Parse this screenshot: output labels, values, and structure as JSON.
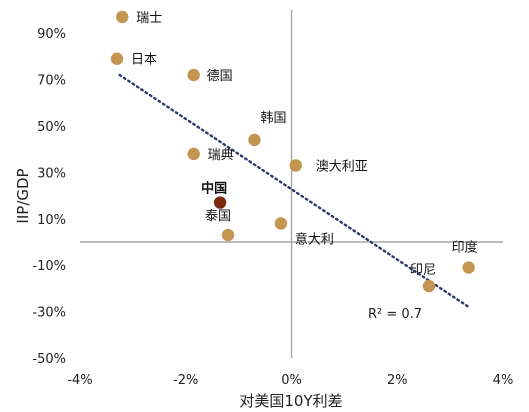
{
  "chart_data": {
    "type": "scatter",
    "xlabel": "对美国10Y利差",
    "ylabel": "IIP/GDP",
    "xlim": [
      -4,
      4
    ],
    "ylim": [
      -50,
      100
    ],
    "x_ticks": [
      -4,
      -2,
      0,
      2,
      4
    ],
    "x_tick_labels": [
      "-4%",
      "-2%",
      "0%",
      "2%",
      "4%"
    ],
    "y_ticks": [
      90,
      70,
      50,
      30,
      10,
      -10,
      -30,
      -50
    ],
    "y_tick_labels": [
      "90%",
      "70%",
      "50%",
      "30%",
      "10%",
      "-10%",
      "-30%",
      "-50%"
    ],
    "points": [
      {
        "label": "瑞士",
        "x": -3.2,
        "y": 97
      },
      {
        "label": "日本",
        "x": -3.3,
        "y": 79
      },
      {
        "label": "德国",
        "x": -1.85,
        "y": 72
      },
      {
        "label": "韩国",
        "x": -0.7,
        "y": 44
      },
      {
        "label": "瑞典",
        "x": -1.85,
        "y": 38
      },
      {
        "label": "澳大利亚",
        "x": 0.08,
        "y": 33
      },
      {
        "label": "中国",
        "x": -1.35,
        "y": 17,
        "highlight": true
      },
      {
        "label": "泰国",
        "x": -1.2,
        "y": 3
      },
      {
        "label": "意大利",
        "x": -0.2,
        "y": 8
      },
      {
        "label": "印度",
        "x": 3.35,
        "y": -11
      },
      {
        "label": "印尼",
        "x": 2.6,
        "y": -19
      }
    ],
    "trendline": {
      "x": [
        -3.25,
        3.35
      ],
      "y": [
        72,
        -28
      ]
    },
    "annotation": "R² = 0.7",
    "colors": {
      "point": "#C39550",
      "highlight": "#7A2A0E",
      "trend": "#2E3A6B",
      "axis": "#A6A6A6"
    }
  }
}
